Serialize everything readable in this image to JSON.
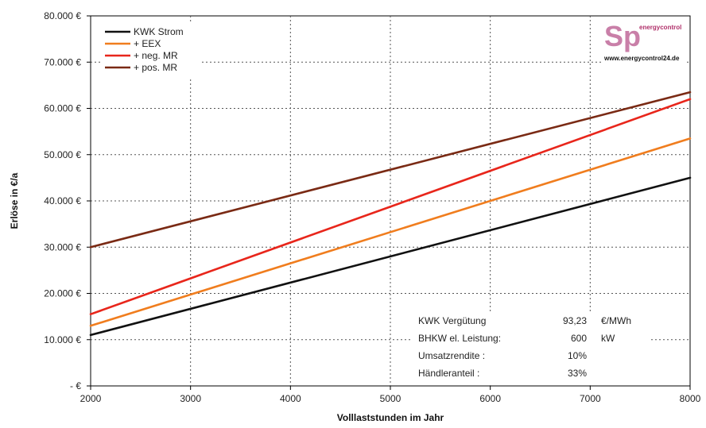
{
  "chart_data": {
    "type": "line",
    "xlabel": "Volllaststunden im Jahr",
    "ylabel": "Erlöse in €/a",
    "xlim": [
      2000,
      8000
    ],
    "ylim": [
      0,
      80000
    ],
    "x_ticks": [
      "2000",
      "3000",
      "4000",
      "5000",
      "6000",
      "7000",
      "8000"
    ],
    "y_ticks": [
      "-  €",
      "10.000 €",
      "20.000 €",
      "30.000 €",
      "40.000 €",
      "50.000 €",
      "60.000 €",
      "70.000 €",
      "80.000 €"
    ],
    "grid": true,
    "legend_position": "top-left",
    "series": [
      {
        "name": "KWK Strom",
        "color": "#111111",
        "x": [
          2000,
          8000
        ],
        "y": [
          11000,
          45000
        ]
      },
      {
        "name": "+ EEX",
        "color": "#f07d1e",
        "x": [
          2000,
          8000
        ],
        "y": [
          13000,
          53500
        ]
      },
      {
        "name": "+ neg. MR",
        "color": "#e8261b",
        "x": [
          2000,
          8000
        ],
        "y": [
          15500,
          62000
        ]
      },
      {
        "name": "+ pos. MR",
        "color": "#7a2a14",
        "x": [
          2000,
          8000
        ],
        "y": [
          30000,
          63500
        ]
      }
    ]
  },
  "info_table": [
    {
      "label": "KWK Vergütung",
      "value": "93,23",
      "unit": "€/MWh"
    },
    {
      "label": "BHKW el. Leistung:",
      "value": "600",
      "unit": "kW"
    },
    {
      "label": "Umsatzrendite :",
      "value": "10%",
      "unit": ""
    },
    {
      "label": "Händleranteil :",
      "value": "33%",
      "unit": ""
    }
  ],
  "brand": {
    "logo_text": "Sp",
    "logo_tag": "energycontrol",
    "url": "www.energycontrol24.de"
  }
}
